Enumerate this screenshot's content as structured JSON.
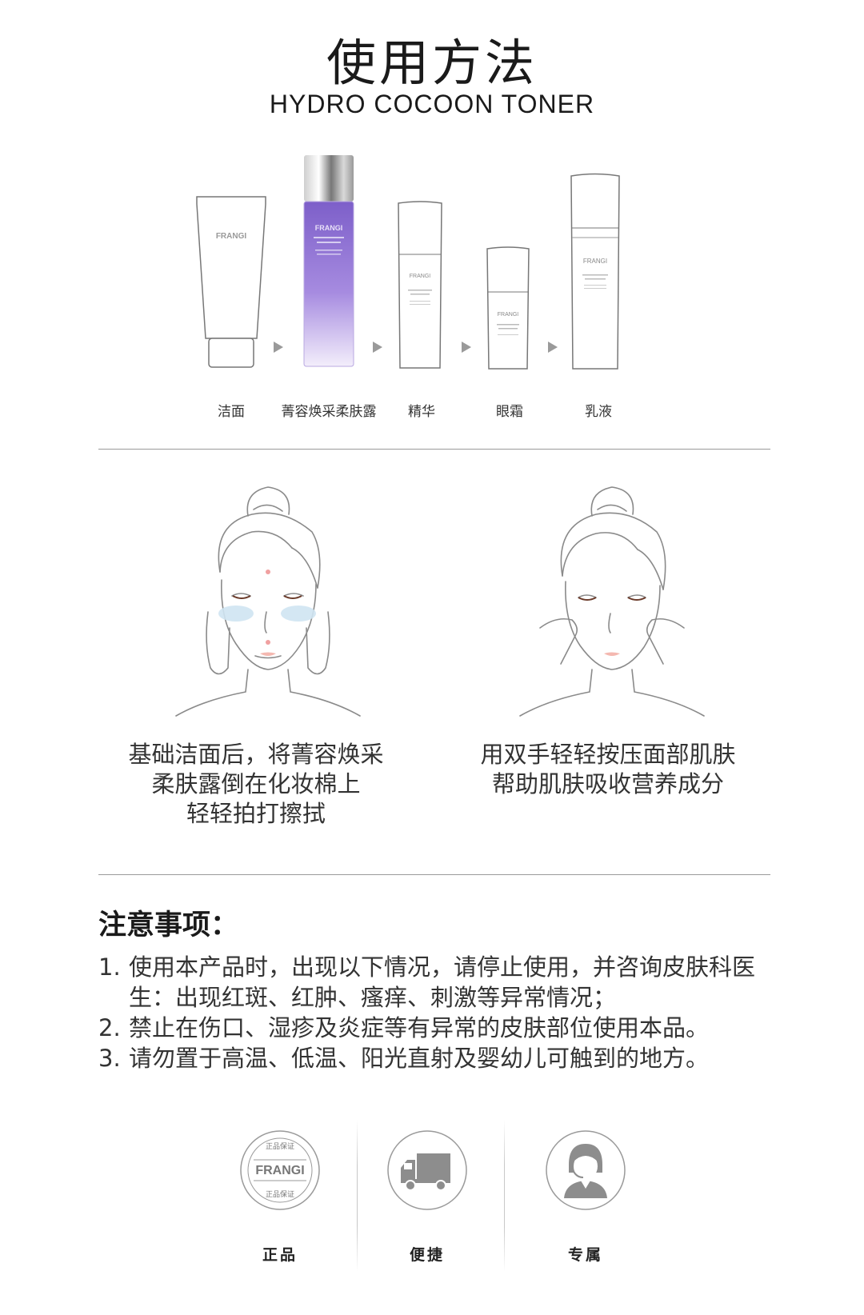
{
  "header": {
    "title": "使用方法",
    "subtitle": "HYDRO COCOON TONER"
  },
  "steps": [
    {
      "label": "洁面",
      "product_brand": "FRANGI"
    },
    {
      "label": "菁容焕采柔肤露",
      "product_brand": "FRANGI"
    },
    {
      "label": "精华",
      "product_brand": "FRANGI"
    },
    {
      "label": "眼霜",
      "product_brand": "FRANGI"
    },
    {
      "label": "乳液",
      "product_brand": "FRANGI"
    }
  ],
  "instructions": [
    {
      "lines": [
        "基础洁面后，将菁容焕采",
        "柔肤露倒在化妆棉上",
        "轻轻拍打擦拭"
      ]
    },
    {
      "lines": [
        "用双手轻轻按压面部肌肤",
        "帮助肌肤吸收营养成分"
      ]
    }
  ],
  "notes": {
    "heading": "注意事项：",
    "items": [
      {
        "num": "1.",
        "text": "使用本产品时，出现以下情况，请停止使用，并咨询皮肤科医生：出现红斑、红肿、瘙痒、刺激等异常情况；"
      },
      {
        "num": "2.",
        "text": "禁止在伤口、湿疹及炎症等有异常的皮肤部位使用本品。"
      },
      {
        "num": "3.",
        "text": "请勿置于高温、低温、阳光直射及婴幼儿可触到的地方。"
      }
    ]
  },
  "badges": [
    {
      "label": "正品",
      "icon": "authentic-seal-icon",
      "seal_brand": "FRANGI",
      "seal_text": "正品保证"
    },
    {
      "label": "便捷",
      "icon": "delivery-truck-icon"
    },
    {
      "label": "专属",
      "icon": "customer-service-icon"
    }
  ],
  "colors": {
    "toner_purple": "#9b7fd6",
    "divider": "#9a9a9a",
    "arrow": "#9a9a9a",
    "text": "#333333"
  }
}
